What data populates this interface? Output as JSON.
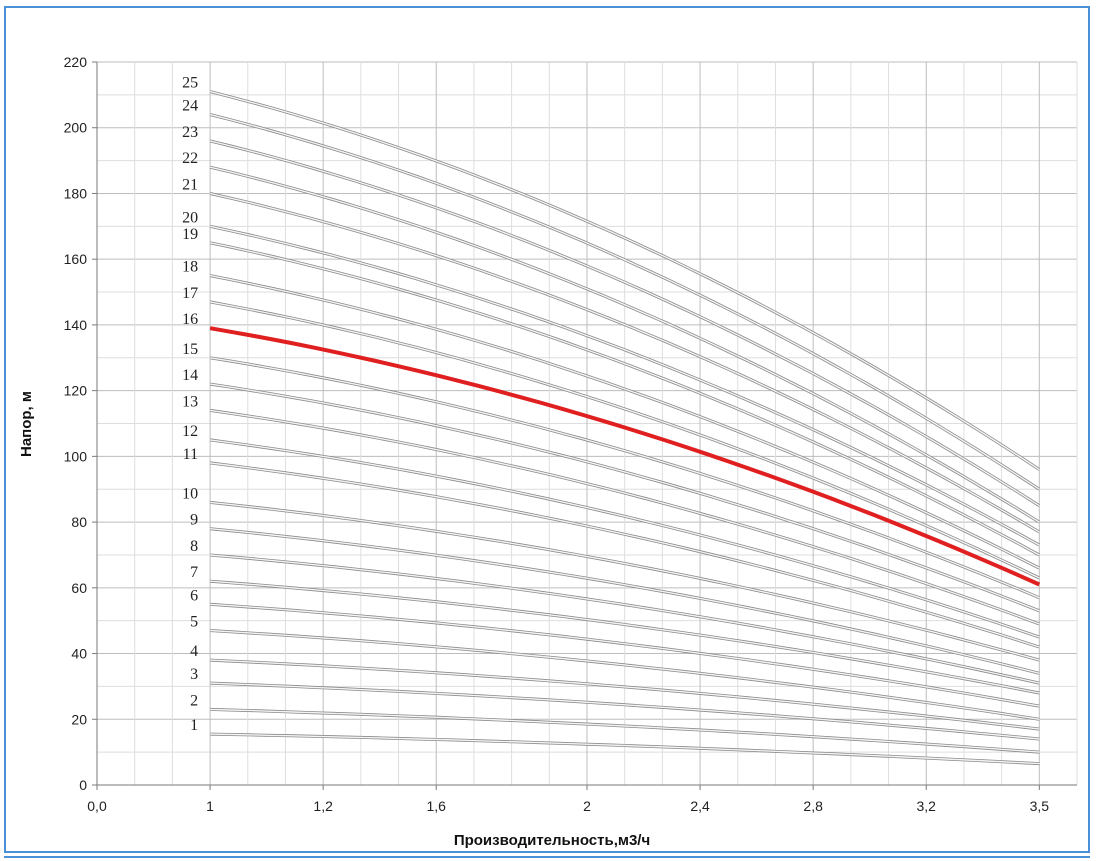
{
  "chart_data": {
    "type": "line",
    "xlabel": "Производительность,м3/ч",
    "ylabel": "Напор, м",
    "x_ticks": [
      {
        "label": "0,0",
        "v": 0.7
      },
      {
        "label": "1",
        "v": 1.0
      },
      {
        "label": "1,2",
        "v": 1.3
      },
      {
        "label": "1,6",
        "v": 1.6
      },
      {
        "label": "2",
        "v": 2.0
      },
      {
        "label": "2,4",
        "v": 2.3
      },
      {
        "label": "2,8",
        "v": 2.6
      },
      {
        "label": "3,2",
        "v": 2.9
      },
      {
        "label": "3,5",
        "v": 3.2
      }
    ],
    "y_ticks": [
      0,
      20,
      40,
      60,
      80,
      100,
      120,
      140,
      160,
      180,
      200,
      220
    ],
    "ylim": [
      0,
      220
    ],
    "grid": true,
    "x_range": [
      1.0,
      3.2
    ],
    "highlight_series": "16",
    "highlight_color": "#e02020",
    "curve_color": "#8a8a8a",
    "series": [
      {
        "name": "1",
        "y_start": 15.5,
        "y_end": 6.5
      },
      {
        "name": "2",
        "y_start": 23,
        "y_end": 10
      },
      {
        "name": "3",
        "y_start": 31,
        "y_end": 14
      },
      {
        "name": "4",
        "y_start": 38,
        "y_end": 17
      },
      {
        "name": "5",
        "y_start": 47,
        "y_end": 20
      },
      {
        "name": "6",
        "y_start": 55,
        "y_end": 24
      },
      {
        "name": "7",
        "y_start": 62,
        "y_end": 28
      },
      {
        "name": "8",
        "y_start": 70,
        "y_end": 31
      },
      {
        "name": "9",
        "y_start": 78,
        "y_end": 34
      },
      {
        "name": "10",
        "y_start": 86,
        "y_end": 38
      },
      {
        "name": "11",
        "y_start": 98,
        "y_end": 42
      },
      {
        "name": "12",
        "y_start": 105,
        "y_end": 45
      },
      {
        "name": "13",
        "y_start": 114,
        "y_end": 49
      },
      {
        "name": "14",
        "y_start": 122,
        "y_end": 53
      },
      {
        "name": "15",
        "y_start": 130,
        "y_end": 57
      },
      {
        "name": "16",
        "y_start": 139,
        "y_end": 61
      },
      {
        "name": "17",
        "y_start": 147,
        "y_end": 63
      },
      {
        "name": "18",
        "y_start": 155,
        "y_end": 66
      },
      {
        "name": "19",
        "y_start": 165,
        "y_end": 70
      },
      {
        "name": "20",
        "y_start": 170,
        "y_end": 73
      },
      {
        "name": "21",
        "y_start": 180,
        "y_end": 77
      },
      {
        "name": "22",
        "y_start": 188,
        "y_end": 80
      },
      {
        "name": "23",
        "y_start": 196,
        "y_end": 85
      },
      {
        "name": "24",
        "y_start": 204,
        "y_end": 90
      },
      {
        "name": "25",
        "y_start": 211,
        "y_end": 96
      }
    ]
  }
}
